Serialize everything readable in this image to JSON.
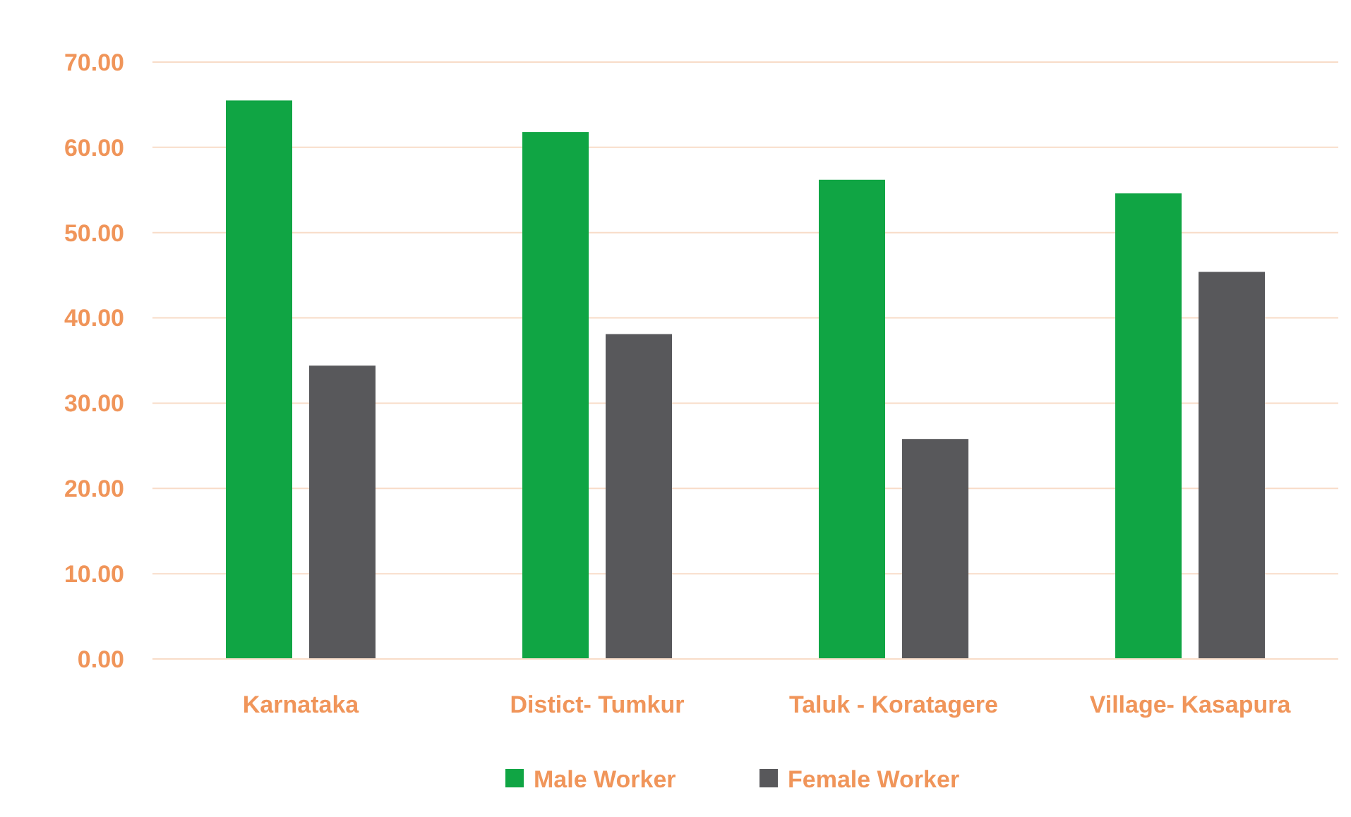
{
  "chart_data": {
    "type": "bar",
    "categories": [
      "Karnataka",
      "Distict- Tumkur",
      "Taluk - Koratagere",
      "Village- Kasapura"
    ],
    "series": [
      {
        "name": "Male Worker",
        "color": "#10a544",
        "values": [
          65.5,
          61.8,
          56.2,
          54.6
        ]
      },
      {
        "name": "Female Worker",
        "color": "#58585b",
        "values": [
          34.4,
          38.1,
          25.8,
          45.4
        ]
      }
    ],
    "ylim": [
      0,
      70
    ],
    "yticks": [
      {
        "value": 0,
        "label": "0.00"
      },
      {
        "value": 10,
        "label": "10.00"
      },
      {
        "value": 20,
        "label": "20.00"
      },
      {
        "value": 30,
        "label": "30.00"
      },
      {
        "value": 40,
        "label": "40.00"
      },
      {
        "value": 50,
        "label": "50.00"
      },
      {
        "value": 60,
        "label": "60.00"
      },
      {
        "value": 70,
        "label": "70.00"
      }
    ],
    "grid": "y",
    "legend": "bottom"
  }
}
